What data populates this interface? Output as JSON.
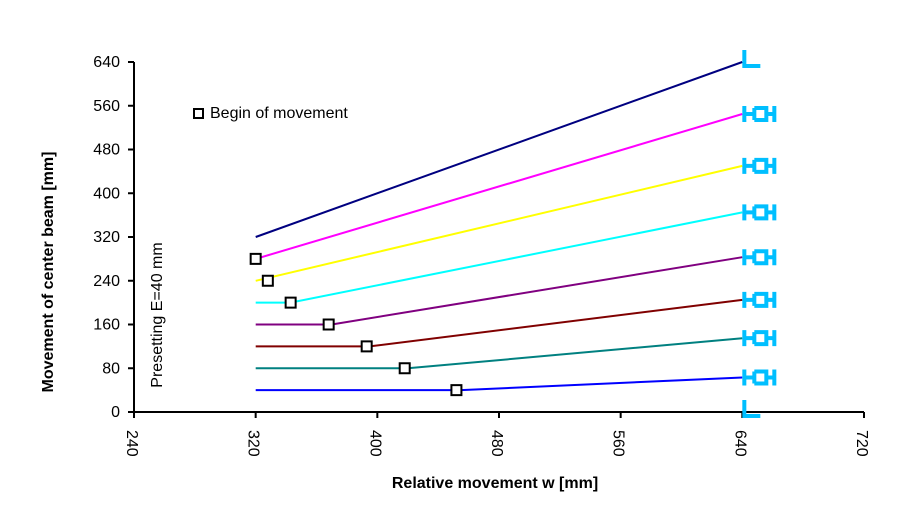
{
  "chart_data": {
    "type": "line",
    "xlabel": "Relative movement w [mm]",
    "ylabel": "Movement of center beam [mm]",
    "side_label": "Presetting E=40  mm",
    "legend_label": "Begin of movement",
    "legend_position": "top-left",
    "xlim": [
      240,
      720
    ],
    "ylim": [
      0,
      640
    ],
    "xticks": [
      "240",
      "320",
      "400",
      "480",
      "560",
      "640",
      "720"
    ],
    "yticks": [
      "0",
      "80",
      "160",
      "240",
      "320",
      "400",
      "480",
      "560",
      "640"
    ],
    "grid": false,
    "series": [
      {
        "color": "#000080",
        "points": [
          [
            320,
            320
          ],
          [
            640,
            640
          ]
        ],
        "begin": null,
        "icon": "beam-end-profile-icon"
      },
      {
        "color": "#ff00ff",
        "points": [
          [
            320,
            280
          ],
          [
            640,
            545
          ]
        ],
        "begin": [
          320,
          280
        ],
        "icon": "beam-joint-profile-icon"
      },
      {
        "color": "#ffff00",
        "points": [
          [
            320,
            240
          ],
          [
            640,
            450
          ]
        ],
        "begin": [
          328,
          240
        ],
        "icon": "beam-joint-profile-icon"
      },
      {
        "color": "#00ffff",
        "points": [
          [
            320,
            200
          ],
          [
            343,
            200
          ],
          [
            640,
            365
          ]
        ],
        "begin": [
          343,
          200
        ],
        "icon": "beam-joint-profile-icon"
      },
      {
        "color": "#800080",
        "points": [
          [
            320,
            160
          ],
          [
            370,
            160
          ],
          [
            640,
            283
          ]
        ],
        "begin": [
          368,
          160
        ],
        "icon": "beam-joint-profile-icon"
      },
      {
        "color": "#800000",
        "points": [
          [
            320,
            120
          ],
          [
            395,
            120
          ],
          [
            640,
            205
          ]
        ],
        "begin": [
          393,
          120
        ],
        "icon": "beam-joint-profile-icon"
      },
      {
        "color": "#008080",
        "points": [
          [
            320,
            80
          ],
          [
            420,
            80
          ],
          [
            640,
            135
          ]
        ],
        "begin": [
          418,
          80
        ],
        "icon": "beam-joint-profile-icon"
      },
      {
        "color": "#0000ff",
        "points": [
          [
            320,
            40
          ],
          [
            455,
            40
          ],
          [
            640,
            63
          ]
        ],
        "begin": [
          452,
          40
        ],
        "icon": "beam-joint-profile-icon"
      },
      {
        "color": "#00bfff",
        "points": [],
        "begin": null,
        "icon": "beam-end-profile-icon"
      }
    ]
  }
}
